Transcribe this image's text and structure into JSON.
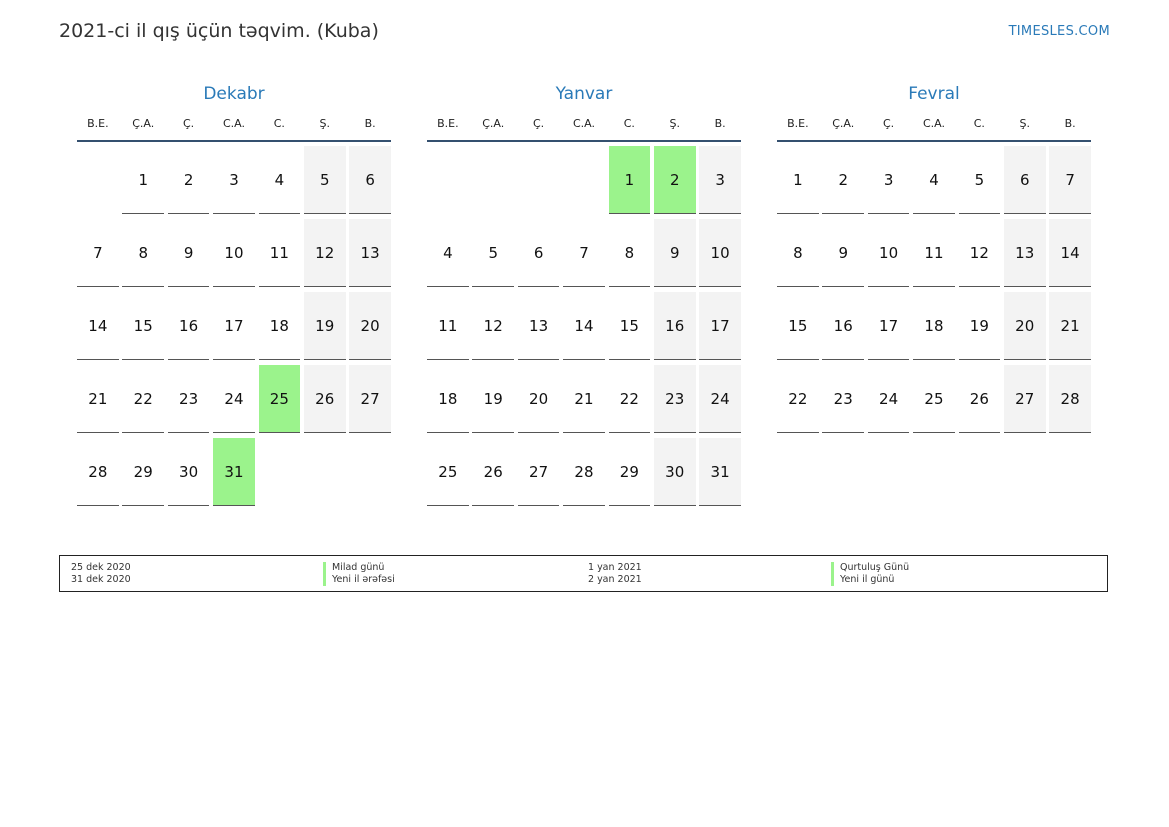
{
  "header": {
    "title": "2021-ci il qış üçün təqvim. (Kuba)",
    "site": "TIMESLES.COM"
  },
  "weekday_labels": [
    "B.E.",
    "Ç.A.",
    "Ç.",
    "C.A.",
    "C.",
    "Ş.",
    "B."
  ],
  "months": [
    {
      "name": "Dekabr",
      "offset": 1,
      "days": 31,
      "holidays": [
        25,
        31
      ]
    },
    {
      "name": "Yanvar",
      "offset": 4,
      "days": 31,
      "holidays": [
        1,
        2
      ]
    },
    {
      "name": "Fevral",
      "offset": 0,
      "days": 28,
      "holidays": []
    }
  ],
  "legend": [
    {
      "date": "25 dek 2020",
      "name": "Milad günü"
    },
    {
      "date": "31 dek 2020",
      "name": "Yeni il ərəfəsi"
    },
    {
      "date": "1 yan 2021",
      "name": "Qurtuluş Günü"
    },
    {
      "date": "2 yan 2021",
      "name": "Yeni il günü"
    }
  ],
  "colors": {
    "accent": "#2a7ab8",
    "holiday": "#9bf38c",
    "weekend": "#f3f3f3",
    "rule": "#34506f"
  }
}
